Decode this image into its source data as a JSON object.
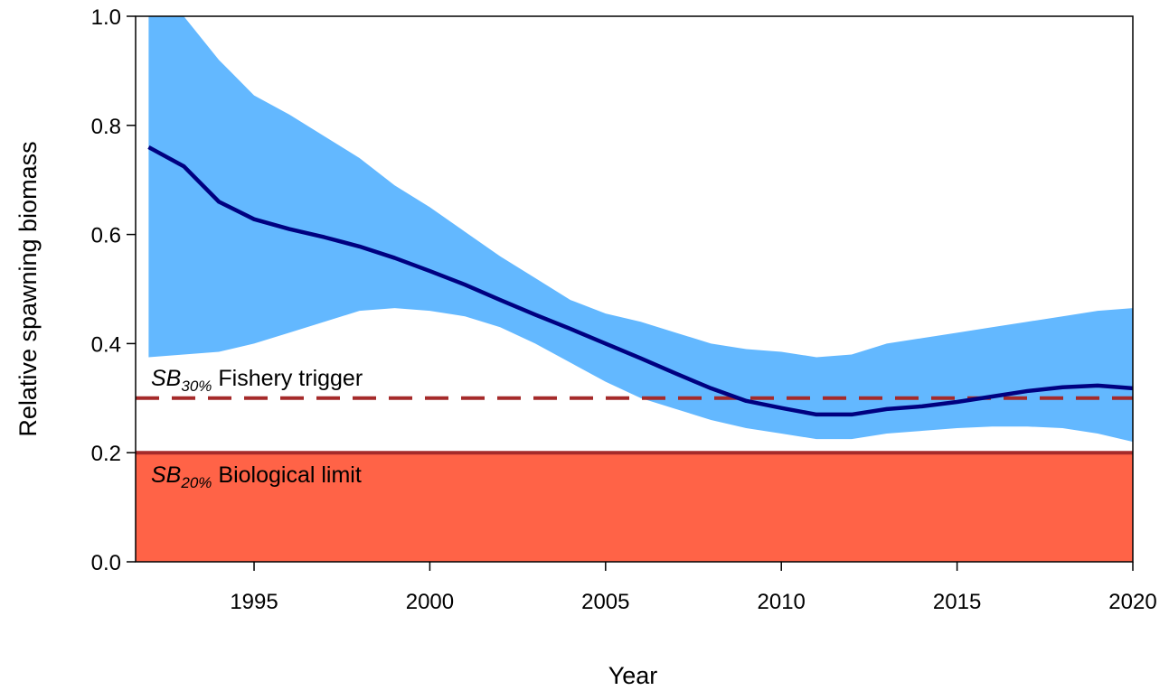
{
  "chart_data": {
    "type": "band-line",
    "x_label": "Year",
    "y_label": "Relative spawning biomass",
    "x": [
      1992,
      1993,
      1994,
      1995,
      1996,
      1997,
      1998,
      1999,
      2000,
      2001,
      2002,
      2003,
      2004,
      2005,
      2006,
      2007,
      2008,
      2009,
      2010,
      2011,
      2012,
      2013,
      2014,
      2015,
      2016,
      2017,
      2018,
      2019,
      2020
    ],
    "values": [
      0.76,
      0.725,
      0.66,
      0.628,
      0.61,
      0.595,
      0.578,
      0.557,
      0.533,
      0.508,
      0.48,
      0.453,
      0.427,
      0.4,
      0.373,
      0.345,
      0.318,
      0.295,
      0.282,
      0.27,
      0.27,
      0.28,
      0.285,
      0.293,
      0.303,
      0.313,
      0.32,
      0.323,
      0.318
    ],
    "upper": [
      1.05,
      1.0,
      0.92,
      0.855,
      0.82,
      0.78,
      0.74,
      0.69,
      0.65,
      0.605,
      0.56,
      0.52,
      0.48,
      0.455,
      0.44,
      0.42,
      0.4,
      0.39,
      0.385,
      0.375,
      0.38,
      0.4,
      0.41,
      0.42,
      0.43,
      0.44,
      0.45,
      0.46,
      0.465
    ],
    "lower": [
      0.375,
      0.38,
      0.385,
      0.4,
      0.42,
      0.44,
      0.46,
      0.465,
      0.46,
      0.45,
      0.43,
      0.4,
      0.365,
      0.33,
      0.3,
      0.28,
      0.26,
      0.245,
      0.235,
      0.225,
      0.225,
      0.235,
      0.24,
      0.245,
      0.248,
      0.248,
      0.245,
      0.235,
      0.22
    ],
    "color": "#000080",
    "band_color": "#63b8ff",
    "xlim": [
      1991.63,
      2020
    ],
    "ylim": [
      0,
      1
    ],
    "xticks": [
      1995,
      2000,
      2005,
      2010,
      2015,
      2020
    ],
    "yticks": [
      {
        "value": 0,
        "label": "0.0"
      },
      0.2,
      0.4,
      0.6,
      0.8,
      {
        "value": 1,
        "label": "1.0"
      }
    ],
    "reference_lines": [
      {
        "value": 0.3,
        "style": "dashed",
        "color": "#a52a2a",
        "label": {
          "symbol": "SB",
          "subscript": "30%",
          "text": "Fishery trigger"
        }
      },
      {
        "value": 0.2,
        "style": "solid",
        "color": "#a52a2a",
        "fill_below": "#ff6347",
        "label": {
          "symbol": "SB",
          "subscript": "20%",
          "text": "Biological limit"
        }
      }
    ]
  }
}
